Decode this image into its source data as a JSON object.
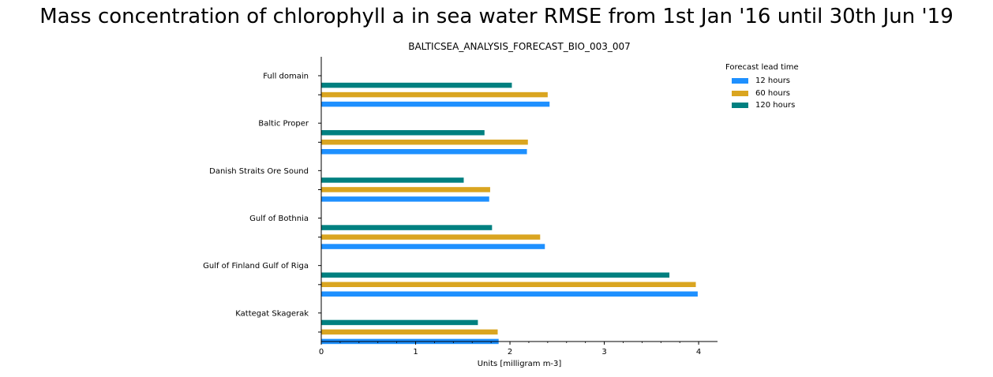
{
  "chart_data": {
    "type": "bar",
    "orientation": "horizontal",
    "title": "Mass concentration of chlorophyll a in sea water RMSE from 1st Jan '16 until 30th Jun '19",
    "subtitle": "BALTICSEA_ANALYSIS_FORECAST_BIO_003_007",
    "xlabel": "Units [milligram m-3]",
    "ylabel": "",
    "xlim": [
      0,
      4.2
    ],
    "xticks": [
      0,
      1,
      2,
      3,
      4
    ],
    "grid": false,
    "legend_title": "Forecast lead time",
    "legend_position": "top-right",
    "categories": [
      "Full domain",
      "Baltic Proper",
      "Danish Straits Ore Sound",
      "Gulf of Bothnia",
      "Gulf of Finland Gulf of Riga",
      "Kattegat Skagerak"
    ],
    "series": [
      {
        "name": "12 hours",
        "color": "#1e90ff",
        "values": [
          2.42,
          2.18,
          1.78,
          2.37,
          3.99,
          1.88
        ]
      },
      {
        "name": "60 hours",
        "color": "#daa520",
        "values": [
          2.4,
          2.19,
          1.79,
          2.32,
          3.97,
          1.87
        ]
      },
      {
        "name": "120 hours",
        "color": "#008080",
        "values": [
          2.02,
          1.73,
          1.51,
          1.81,
          3.69,
          1.66
        ]
      }
    ]
  }
}
